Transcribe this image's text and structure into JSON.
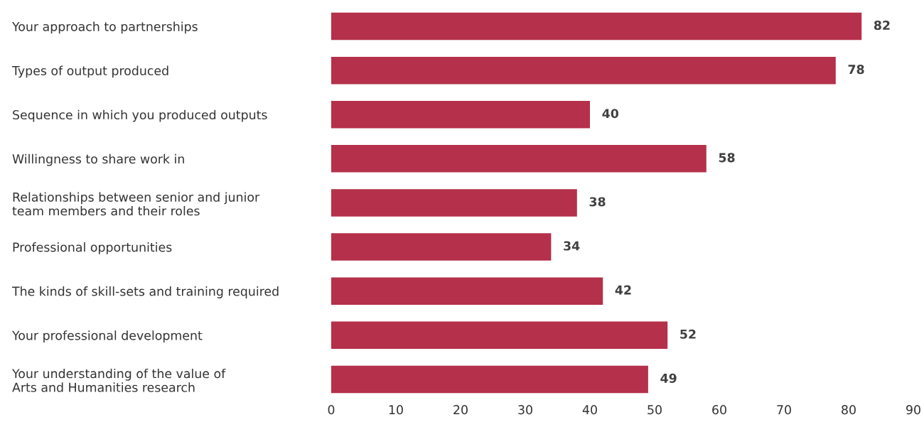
{
  "chart_data": {
    "type": "bar",
    "orientation": "horizontal",
    "categories": [
      "Your approach to partnerships",
      "Types of output produced",
      "Sequence in which you produced outputs",
      "Willingness to share work in",
      "Relationships between senior and junior\nteam members and their roles",
      "Professional opportunities",
      "The kinds of skill-sets and training required",
      "Your professional development",
      "Your understanding of the value of\nArts and Humanities research"
    ],
    "values": [
      82,
      78,
      40,
      58,
      38,
      34,
      42,
      52,
      49
    ],
    "color": "#b5304a",
    "xlim": [
      0,
      90
    ],
    "xticks": [
      0,
      10,
      20,
      30,
      40,
      50,
      60,
      70,
      80,
      90
    ],
    "data_labels": true,
    "grid": false,
    "legend": false
  }
}
